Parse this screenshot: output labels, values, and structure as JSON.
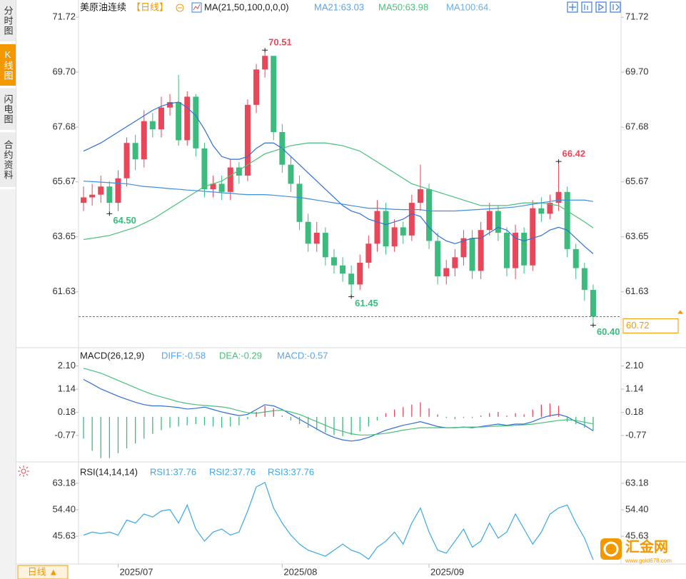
{
  "sidebar": {
    "tabs": [
      "分时图",
      "K线图",
      "闪电图",
      "合约资料"
    ]
  },
  "footer": {
    "period_button": "日线 ▲"
  },
  "watermark": {
    "brand": "汇金网",
    "url": "www.gold678.com"
  },
  "chart_data": [
    {
      "type": "candlestick",
      "title": "美原油连续",
      "period": "【日线】",
      "indicator": "MA(21,50,100,0,0,0)",
      "categories": [
        null,
        null,
        null,
        null,
        null,
        null,
        null,
        null,
        null,
        null,
        null,
        null,
        null,
        null,
        null,
        null,
        null,
        null,
        null,
        null,
        null,
        null,
        null,
        null,
        null,
        null,
        null,
        null,
        null,
        null,
        null,
        null,
        null,
        null,
        null,
        null,
        null,
        null,
        null,
        null,
        null,
        null,
        null,
        null,
        null,
        null,
        null,
        null,
        null,
        null,
        null,
        null,
        null,
        null,
        null,
        null,
        null,
        null,
        null,
        null
      ],
      "open": [
        64.9,
        65.1,
        65.2,
        65.5,
        64.9,
        65.8,
        67.1,
        66.5,
        67.9,
        67.6,
        68.4,
        68.6,
        67.2,
        68.8,
        66.9,
        65.4,
        65.6,
        65.3,
        66.2,
        65.9,
        68.5,
        69.8,
        70.3,
        67.5,
        66.3,
        65.6,
        64.2,
        63.4,
        63.8,
        62.9,
        62.6,
        62.3,
        61.9,
        62.7,
        63.4,
        64.6,
        63.3,
        64.0,
        63.7,
        64.9,
        65.4,
        63.5,
        62.2,
        62.5,
        62.9,
        63.6,
        62.4,
        63.9,
        64.6,
        63.8,
        62.5,
        63.8,
        62.6,
        64.7,
        64.5,
        64.9,
        65.3,
        63.2,
        62.5,
        61.7
      ],
      "high": [
        65.5,
        65.6,
        65.9,
        65.7,
        66.1,
        67.3,
        67.4,
        68.3,
        68.2,
        68.8,
        68.9,
        69.6,
        69.0,
        68.9,
        67.1,
        65.9,
        65.9,
        66.5,
        66.4,
        68.7,
        70.0,
        70.51,
        70.2,
        67.8,
        66.6,
        65.9,
        64.5,
        64.2,
        64.0,
        63.2,
        62.9,
        62.6,
        63.0,
        63.7,
        65.0,
        64.9,
        64.3,
        64.2,
        65.2,
        66.3,
        65.6,
        63.8,
        62.8,
        63.2,
        63.9,
        63.9,
        64.2,
        64.9,
        64.8,
        64.0,
        64.1,
        64.0,
        65.0,
        65.1,
        65.2,
        66.42,
        65.5,
        63.4,
        62.7,
        61.9
      ],
      "low": [
        64.6,
        64.8,
        64.9,
        64.5,
        64.6,
        65.5,
        66.1,
        66.2,
        67.3,
        67.3,
        68.1,
        67.0,
        67.0,
        66.6,
        65.1,
        65.1,
        65.0,
        65.0,
        65.6,
        65.7,
        68.2,
        69.5,
        67.2,
        66.0,
        65.3,
        63.9,
        63.1,
        63.1,
        62.6,
        62.3,
        62.0,
        61.45,
        61.7,
        62.5,
        63.1,
        63.0,
        63.1,
        63.4,
        63.5,
        64.6,
        63.2,
        61.9,
        61.9,
        62.2,
        62.6,
        62.1,
        62.1,
        63.7,
        63.5,
        62.2,
        62.1,
        62.3,
        62.4,
        64.2,
        64.3,
        64.6,
        62.9,
        62.1,
        61.3,
        60.4
      ],
      "close": [
        65.1,
        65.2,
        65.5,
        64.9,
        65.8,
        67.1,
        66.5,
        67.9,
        67.6,
        68.4,
        68.6,
        67.2,
        68.8,
        66.9,
        65.4,
        65.6,
        65.3,
        66.2,
        65.9,
        68.5,
        69.8,
        70.3,
        67.5,
        66.3,
        65.6,
        64.2,
        63.4,
        63.8,
        62.9,
        62.6,
        62.3,
        61.9,
        62.7,
        63.4,
        64.6,
        63.3,
        64.0,
        63.7,
        64.9,
        65.4,
        63.5,
        62.2,
        62.5,
        62.9,
        63.6,
        62.4,
        63.9,
        64.6,
        63.8,
        62.5,
        63.8,
        62.6,
        64.7,
        64.5,
        64.9,
        65.3,
        63.2,
        62.5,
        61.7,
        60.72
      ],
      "up_color": "#e8475a",
      "down_color": "#3dbb7e",
      "series": [
        {
          "name": "MA21:63.03",
          "color": "#2f6fd6",
          "legend_color": "#5ba3e8",
          "values": [
            66.8,
            66.95,
            67.1,
            67.3,
            67.5,
            67.7,
            67.9,
            68.1,
            68.3,
            68.45,
            68.55,
            68.6,
            68.4,
            68.1,
            67.6,
            67.0,
            66.6,
            66.5,
            66.5,
            66.6,
            66.9,
            67.1,
            67.1,
            66.9,
            66.6,
            66.3,
            66.0,
            65.7,
            65.4,
            65.1,
            64.8,
            64.6,
            64.5,
            64.3,
            64.2,
            64.1,
            64.2,
            64.3,
            64.5,
            64.4,
            64.0,
            63.7,
            63.5,
            63.4,
            63.5,
            63.6,
            63.6,
            63.8,
            64.0,
            63.9,
            63.6,
            63.5,
            63.6,
            63.7,
            63.9,
            64.0,
            63.9,
            63.6,
            63.3,
            63.03
          ]
        },
        {
          "name": "MA50:63.98",
          "color": "#48c07a",
          "legend_color": "#48c07a",
          "values": [
            63.55,
            63.6,
            63.65,
            63.7,
            63.8,
            63.9,
            64.0,
            64.15,
            64.3,
            64.5,
            64.7,
            64.9,
            65.1,
            65.3,
            65.5,
            65.6,
            65.7,
            65.9,
            66.1,
            66.3,
            66.5,
            66.7,
            66.8,
            66.9,
            67.0,
            67.05,
            67.1,
            67.1,
            67.1,
            67.05,
            67.0,
            66.9,
            66.8,
            66.6,
            66.4,
            66.2,
            66.0,
            65.8,
            65.6,
            65.5,
            65.4,
            65.3,
            65.2,
            65.1,
            65.0,
            64.9,
            64.8,
            64.8,
            64.8,
            64.8,
            64.85,
            64.9,
            64.9,
            64.9,
            64.85,
            64.8,
            64.6,
            64.4,
            64.2,
            63.98
          ]
        },
        {
          "name": "MA100:64.",
          "color": "#3c8fe0",
          "legend_color": "#6aaee8",
          "values": [
            65.7,
            65.68,
            65.66,
            65.64,
            65.62,
            65.6,
            65.55,
            65.5,
            65.48,
            65.45,
            65.42,
            65.4,
            65.37,
            65.35,
            65.32,
            65.3,
            65.27,
            65.25,
            65.22,
            65.2,
            65.2,
            65.2,
            65.18,
            65.15,
            65.12,
            65.1,
            65.05,
            65.0,
            64.95,
            64.9,
            64.85,
            64.8,
            64.75,
            64.7,
            64.7,
            64.68,
            64.66,
            64.65,
            64.65,
            64.65,
            64.6,
            64.6,
            64.6,
            64.6,
            64.62,
            64.64,
            64.66,
            64.68,
            64.7,
            64.72,
            64.75,
            64.8,
            64.85,
            64.9,
            64.95,
            65.0,
            65.0,
            65.0,
            65.0,
            64.95
          ]
        }
      ],
      "ylim": [
        59.63,
        72.09
      ],
      "yticks": [
        {
          "value": 61.63,
          "label": "61.63"
        },
        63.65,
        65.67,
        67.68,
        {
          "value": 69.7,
          "label": "69.70"
        },
        71.72
      ],
      "annotations": [
        {
          "x": 21,
          "y": 70.51,
          "color": "#e8475a"
        },
        {
          "x": 3,
          "y": 64.5,
          "label": "64.50",
          "color": "#3dbb7e"
        },
        {
          "x": 31,
          "y": 61.45,
          "color": "#3dbb7e"
        },
        {
          "x": 55,
          "y": 66.42,
          "color": "#e8475a"
        },
        {
          "x": 59,
          "y": 60.4,
          "label": "60.40",
          "color": "#3dbb7e"
        }
      ],
      "last_price": 60.72,
      "last_price_color": "#f39800"
    },
    {
      "type": "macd",
      "title": "MACD(26,12,9)",
      "series": [
        {
          "name": "DIFF:-0.58",
          "kind": "line",
          "color": "#2f6fd6",
          "legend_color": "#5ba3e8",
          "values": [
            1.54,
            1.35,
            1.15,
            1.0,
            0.85,
            0.72,
            0.6,
            0.5,
            0.45,
            0.45,
            0.42,
            0.38,
            0.32,
            0.35,
            0.4,
            0.3,
            0.2,
            0.12,
            0.05,
            0.1,
            0.3,
            0.5,
            0.45,
            0.3,
            0.1,
            -0.1,
            -0.3,
            -0.5,
            -0.7,
            -0.85,
            -0.95,
            -1.0,
            -0.95,
            -0.85,
            -0.7,
            -0.55,
            -0.45,
            -0.35,
            -0.28,
            -0.2,
            -0.3,
            -0.4,
            -0.45,
            -0.45,
            -0.42,
            -0.45,
            -0.4,
            -0.35,
            -0.3,
            -0.35,
            -0.3,
            -0.3,
            -0.2,
            -0.05,
            0.05,
            0.1,
            0.0,
            -0.2,
            -0.35,
            -0.58
          ]
        },
        {
          "name": "DEA:-0.29",
          "kind": "line",
          "color": "#48c07a",
          "legend_color": "#48c07a",
          "values": [
            2.0,
            1.9,
            1.8,
            1.65,
            1.5,
            1.35,
            1.2,
            1.05,
            0.92,
            0.82,
            0.72,
            0.62,
            0.55,
            0.5,
            0.47,
            0.44,
            0.41,
            0.35,
            0.25,
            0.17,
            0.15,
            0.2,
            0.25,
            0.27,
            0.2,
            0.1,
            -0.05,
            -0.2,
            -0.35,
            -0.5,
            -0.6,
            -0.7,
            -0.75,
            -0.75,
            -0.72,
            -0.68,
            -0.62,
            -0.55,
            -0.5,
            -0.45,
            -0.45,
            -0.45,
            -0.45,
            -0.44,
            -0.43,
            -0.42,
            -0.42,
            -0.4,
            -0.38,
            -0.37,
            -0.35,
            -0.33,
            -0.3,
            -0.25,
            -0.2,
            -0.15,
            -0.12,
            -0.15,
            -0.22,
            -0.29
          ]
        },
        {
          "name": "MACD:-0.57",
          "kind": "bar",
          "color": "#3dbb7e",
          "up_color": "#e8475a",
          "legend_color": "#5ba3e8",
          "values": [
            -0.9,
            -1.4,
            -1.7,
            -1.7,
            -1.5,
            -1.3,
            -1.1,
            -0.9,
            -0.7,
            -0.55,
            -0.45,
            -0.4,
            -0.35,
            -0.3,
            -0.35,
            -0.4,
            -0.45,
            -0.4,
            -0.35,
            -0.1,
            0.2,
            0.45,
            0.35,
            0.05,
            -0.15,
            -0.3,
            -0.45,
            -0.55,
            -0.65,
            -0.75,
            -0.8,
            -0.75,
            -0.6,
            -0.4,
            -0.15,
            0.15,
            0.3,
            0.4,
            0.5,
            0.6,
            0.35,
            0.1,
            -0.05,
            -0.1,
            -0.05,
            -0.05,
            0.05,
            0.15,
            0.2,
            0.05,
            0.15,
            0.1,
            0.3,
            0.5,
            0.55,
            0.45,
            -0.2,
            -0.3,
            -0.45,
            -0.57
          ]
        }
      ],
      "ylim": [
        -1.8,
        2.76
      ],
      "yticks": [
        -0.77,
        0.18,
        1.14,
        {
          "value": 2.1,
          "label": "2.10"
        }
      ]
    },
    {
      "type": "line",
      "title": "RSI(14,14,14)",
      "series": [
        {
          "name": "RSI1:37.76",
          "color": "#3aa8e8",
          "legend_color": "#3aa8e8",
          "values": [
            46,
            47,
            46.5,
            47,
            46,
            51,
            50,
            53,
            52,
            54,
            54.5,
            50,
            56,
            48,
            44,
            47,
            48,
            46,
            47,
            54,
            62,
            63.5,
            55,
            50,
            46,
            43,
            41,
            40,
            39,
            41,
            43,
            41,
            40,
            38,
            42,
            44,
            47,
            43,
            50,
            55,
            47,
            41,
            40,
            44,
            48,
            42,
            44,
            50,
            45,
            47,
            53,
            48,
            43,
            47,
            53,
            55,
            56,
            50,
            45,
            37.76
          ]
        }
      ],
      "legend_extra": [
        "RSI2:37.76",
        "RSI3:37.76"
      ],
      "ylim": [
        36.4,
        68.4
      ],
      "yticks": [
        45.63,
        {
          "value": 54.4,
          "label": "54.40"
        },
        63.18
      ],
      "xticks": [
        {
          "value": 4,
          "label": "2025/07"
        },
        {
          "value": 23,
          "label": "2025/08"
        },
        {
          "value": 40,
          "label": "2025/09"
        }
      ]
    }
  ]
}
